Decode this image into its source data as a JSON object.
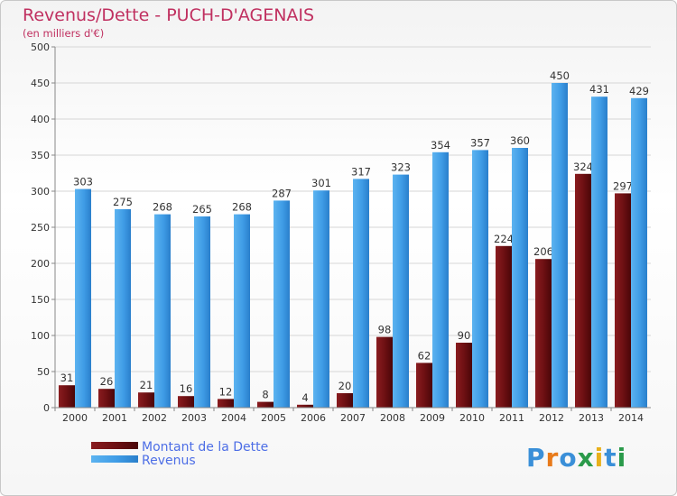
{
  "chart_data": {
    "type": "bar",
    "title": "Revenus/Dette - PUCH-D'AGENAIS",
    "subtitle": "(en milliers d'€)",
    "categories": [
      "2000",
      "2001",
      "2002",
      "2003",
      "2004",
      "2005",
      "2006",
      "2007",
      "2008",
      "2009",
      "2010",
      "2011",
      "2012",
      "2013",
      "2014"
    ],
    "series": [
      {
        "name": "Montant de la Dette",
        "color": "#7a1518",
        "values": [
          31,
          26,
          21,
          16,
          12,
          8,
          4,
          20,
          98,
          62,
          90,
          224,
          206,
          324,
          297
        ]
      },
      {
        "name": "Revenus",
        "color": "#3d9ae6",
        "values": [
          303,
          275,
          268,
          265,
          268,
          287,
          301,
          317,
          323,
          354,
          357,
          360,
          450,
          431,
          429
        ]
      }
    ],
    "ylim": [
      0,
      500
    ],
    "yticks": [
      0,
      50,
      100,
      150,
      200,
      250,
      300,
      350,
      400,
      450,
      500
    ],
    "grid": true,
    "legend_position": "bottom-left"
  },
  "logo": {
    "text": "Proxiti"
  }
}
